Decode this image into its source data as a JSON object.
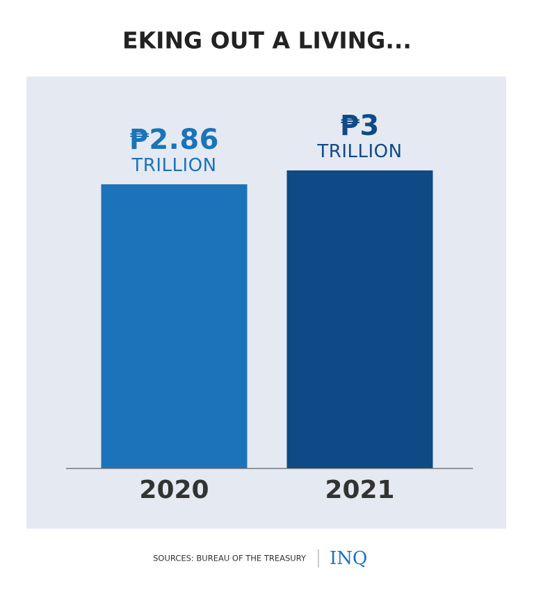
{
  "chart_data": {
    "type": "bar",
    "title": "EKING OUT A LIVING...",
    "categories": [
      "2020",
      "2021"
    ],
    "values": [
      2.86,
      3
    ],
    "value_labels": [
      "₱2.86\nTRILLION",
      "₱3\nTRILLION"
    ],
    "colors": [
      "#1b73b9",
      "#0f4a86"
    ],
    "ylim": [
      0,
      3
    ]
  },
  "footer": {
    "source": "SOURCES: BUREAU OF THE TREASURY",
    "logo": "INQ"
  }
}
